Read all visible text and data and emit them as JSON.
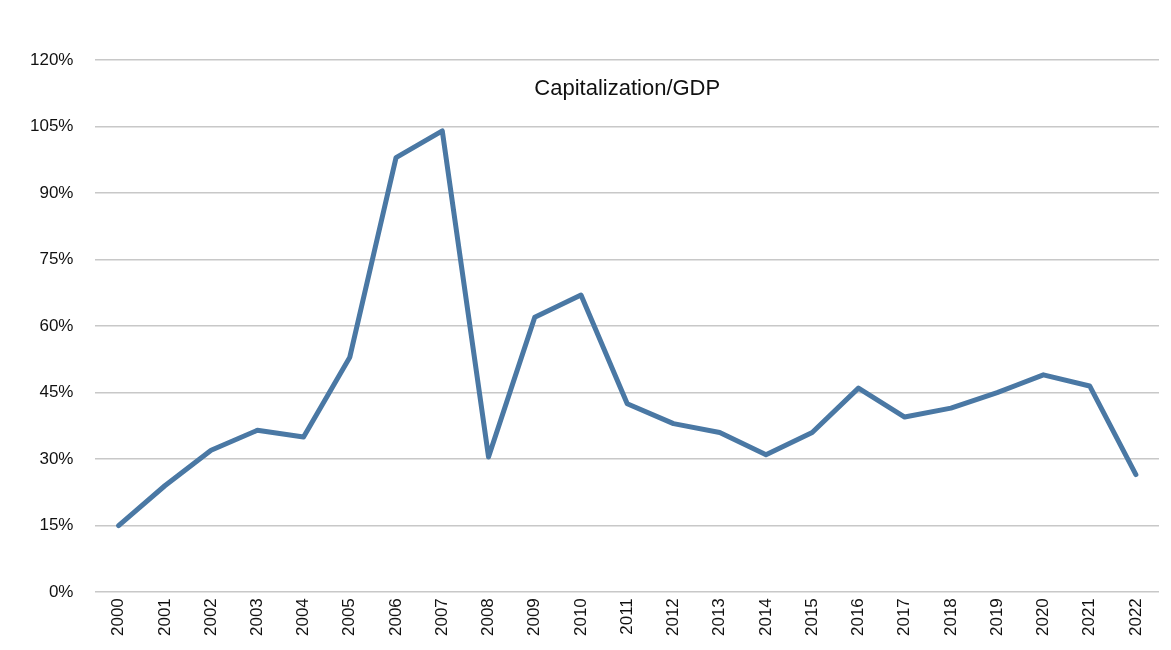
{
  "chart_data": {
    "type": "line",
    "title": "Capitalization/GDP",
    "categories": [
      "2000",
      "2001",
      "2002",
      "2003",
      "2004",
      "2005",
      "2006",
      "2007",
      "2008",
      "2009",
      "2010",
      "2011",
      "2012",
      "2013",
      "2014",
      "2015",
      "2016",
      "2017",
      "2018",
      "2019",
      "2020",
      "2021",
      "2022"
    ],
    "series": [
      {
        "color": "#4a78a4",
        "values": [
          15,
          24,
          32,
          36.5,
          35,
          53,
          98,
          104,
          30.5,
          62,
          67,
          42.5,
          38,
          36,
          31,
          36,
          46,
          39.5,
          41.5,
          45,
          49,
          46.5,
          26.5
        ]
      }
    ],
    "ylim": [
      0,
      120
    ],
    "yticks": [
      {
        "value": 0,
        "label": "0%"
      },
      {
        "value": 15,
        "label": "15%"
      },
      {
        "value": 30,
        "label": "30%"
      },
      {
        "value": 45,
        "label": "45%"
      },
      {
        "value": 60,
        "label": "60%"
      },
      {
        "value": 75,
        "label": "75%"
      },
      {
        "value": 90,
        "label": "90%"
      },
      {
        "value": 105,
        "label": "105%"
      },
      {
        "value": 120,
        "label": "120%"
      }
    ],
    "grid": "y",
    "legend": false,
    "marker": "none",
    "line_style": "solid"
  }
}
